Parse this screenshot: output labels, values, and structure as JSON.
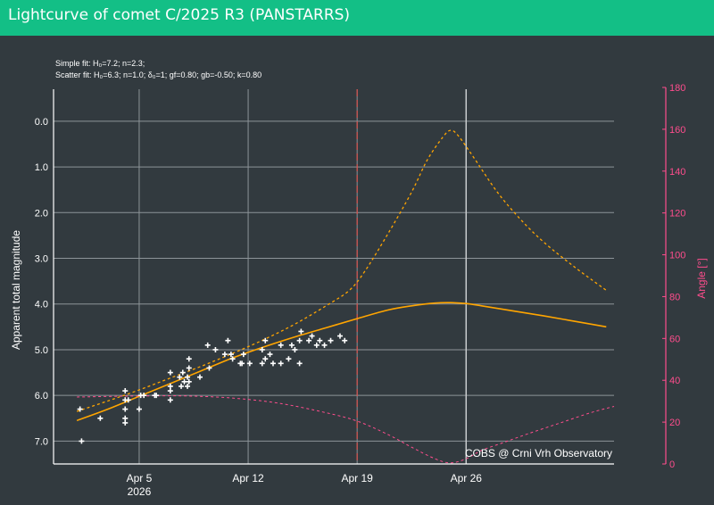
{
  "header": {
    "title": "Lightcurve of comet C/2025 R3 (PANSTARRS)"
  },
  "chart_data": {
    "type": "scatter",
    "fit_lines": [
      "Simple fit: H₀=7.2; n=2.3;",
      "Scatter fit: H₀=6.3; n=1.0; δ₀=1; gf=0.80; gb=-0.50; k=0.80"
    ],
    "ylabel": "Apparent total magnitude",
    "y2label": "Angle [°]",
    "credit": "COBS @ Crni Vrh Observatory",
    "x_range": [
      -0.5,
      35.5
    ],
    "x_units": "days since 2026-03-31",
    "x_ticks": [
      {
        "x": 5,
        "label": "Apr 5",
        "sub": "2026"
      },
      {
        "x": 12,
        "label": "Apr 12",
        "sub": ""
      },
      {
        "x": 19,
        "label": "Apr 19",
        "sub": ""
      },
      {
        "x": 26,
        "label": "Apr 26",
        "sub": ""
      }
    ],
    "y_range": [
      7.5,
      -0.7
    ],
    "y_ticks": [
      0.0,
      1.0,
      2.0,
      3.0,
      4.0,
      5.0,
      6.0,
      7.0
    ],
    "y2_range": [
      0,
      180
    ],
    "y2_ticks": [
      0,
      20,
      40,
      60,
      80,
      100,
      120,
      140,
      160,
      180
    ],
    "vlines": [
      {
        "x": 19,
        "style": "red-dashed"
      },
      {
        "x": 26,
        "style": "grey-solid"
      }
    ],
    "observations": [
      [
        1.2,
        6.3
      ],
      [
        1.3,
        7.0
      ],
      [
        2.5,
        6.5
      ],
      [
        4.1,
        5.9
      ],
      [
        4.1,
        6.1
      ],
      [
        4.1,
        6.3
      ],
      [
        4.1,
        6.5
      ],
      [
        4.1,
        6.6
      ],
      [
        4.3,
        6.1
      ],
      [
        5.0,
        6.3
      ],
      [
        5.1,
        6.0
      ],
      [
        5.3,
        6.0
      ],
      [
        6.0,
        6.0
      ],
      [
        6.1,
        6.0
      ],
      [
        7.0,
        5.5
      ],
      [
        7.0,
        5.8
      ],
      [
        7.0,
        5.9
      ],
      [
        7.0,
        6.1
      ],
      [
        7.6,
        5.6
      ],
      [
        7.7,
        5.8
      ],
      [
        7.8,
        5.5
      ],
      [
        7.9,
        5.7
      ],
      [
        8.1,
        5.6
      ],
      [
        8.1,
        5.8
      ],
      [
        8.2,
        5.2
      ],
      [
        8.2,
        5.4
      ],
      [
        8.2,
        5.7
      ],
      [
        8.9,
        5.6
      ],
      [
        9.4,
        4.9
      ],
      [
        9.5,
        5.4
      ],
      [
        9.9,
        5.0
      ],
      [
        10.5,
        5.1
      ],
      [
        10.7,
        4.8
      ],
      [
        10.9,
        5.1
      ],
      [
        11.0,
        5.2
      ],
      [
        11.5,
        5.3
      ],
      [
        11.6,
        5.3
      ],
      [
        11.7,
        5.1
      ],
      [
        12.1,
        5.3
      ],
      [
        12.9,
        5.0
      ],
      [
        12.9,
        5.3
      ],
      [
        13.1,
        4.8
      ],
      [
        13.1,
        5.2
      ],
      [
        13.4,
        5.1
      ],
      [
        13.6,
        5.3
      ],
      [
        14.1,
        4.9
      ],
      [
        14.1,
        5.3
      ],
      [
        14.6,
        5.2
      ],
      [
        14.8,
        4.9
      ],
      [
        15.0,
        5.0
      ],
      [
        15.3,
        4.8
      ],
      [
        15.3,
        5.3
      ],
      [
        15.4,
        4.6
      ],
      [
        15.9,
        4.8
      ],
      [
        16.1,
        4.7
      ],
      [
        16.4,
        4.9
      ],
      [
        16.6,
        4.8
      ],
      [
        16.9,
        4.9
      ],
      [
        17.3,
        4.8
      ],
      [
        17.9,
        4.7
      ],
      [
        18.2,
        4.8
      ]
    ],
    "series": [
      {
        "name": "Simple fit",
        "axis": "mag",
        "style": "orange-dashed",
        "x": [
          1.0,
          3.0,
          5.0,
          7.0,
          9.0,
          11.0,
          13.0,
          15.0,
          17.0,
          18.5,
          19.5,
          21.0,
          22.5,
          23.5,
          24.5,
          25.0,
          25.5,
          26.5,
          28.0,
          29.5,
          31.0,
          33.0,
          35.0
        ],
        "y": [
          6.35,
          6.12,
          5.88,
          5.62,
          5.36,
          5.08,
          4.78,
          4.44,
          4.04,
          3.7,
          3.28,
          2.45,
          1.55,
          0.85,
          0.35,
          0.2,
          0.32,
          0.8,
          1.55,
          2.15,
          2.65,
          3.2,
          3.7
        ]
      },
      {
        "name": "Scatter fit",
        "axis": "mag",
        "style": "orange-solid",
        "x": [
          1.0,
          3.0,
          5.0,
          7.0,
          9.0,
          11.0,
          13.0,
          15.0,
          17.0,
          19.0,
          21.0,
          22.5,
          24.0,
          25.0,
          26.0,
          27.0,
          29.0,
          31.0,
          33.0,
          35.0
        ],
        "y": [
          6.55,
          6.3,
          6.02,
          5.74,
          5.46,
          5.18,
          4.94,
          4.72,
          4.52,
          4.32,
          4.13,
          4.04,
          3.98,
          3.97,
          3.99,
          4.04,
          4.15,
          4.26,
          4.38,
          4.5
        ]
      },
      {
        "name": "Phase angle",
        "axis": "angle",
        "style": "pink-dashed",
        "x": [
          1.0,
          5.0,
          8.0,
          11.0,
          14.0,
          17.0,
          19.0,
          21.0,
          22.5,
          24.0,
          25.0,
          26.0,
          27.0,
          28.5,
          30.0,
          32.0,
          34.0,
          35.5
        ],
        "y": [
          32,
          32.5,
          32.5,
          31.5,
          29.0,
          24.5,
          20.5,
          14.0,
          8.0,
          2.5,
          0.5,
          2.5,
          6.5,
          10.5,
          14.5,
          19.5,
          24.5,
          27.5
        ]
      }
    ]
  }
}
